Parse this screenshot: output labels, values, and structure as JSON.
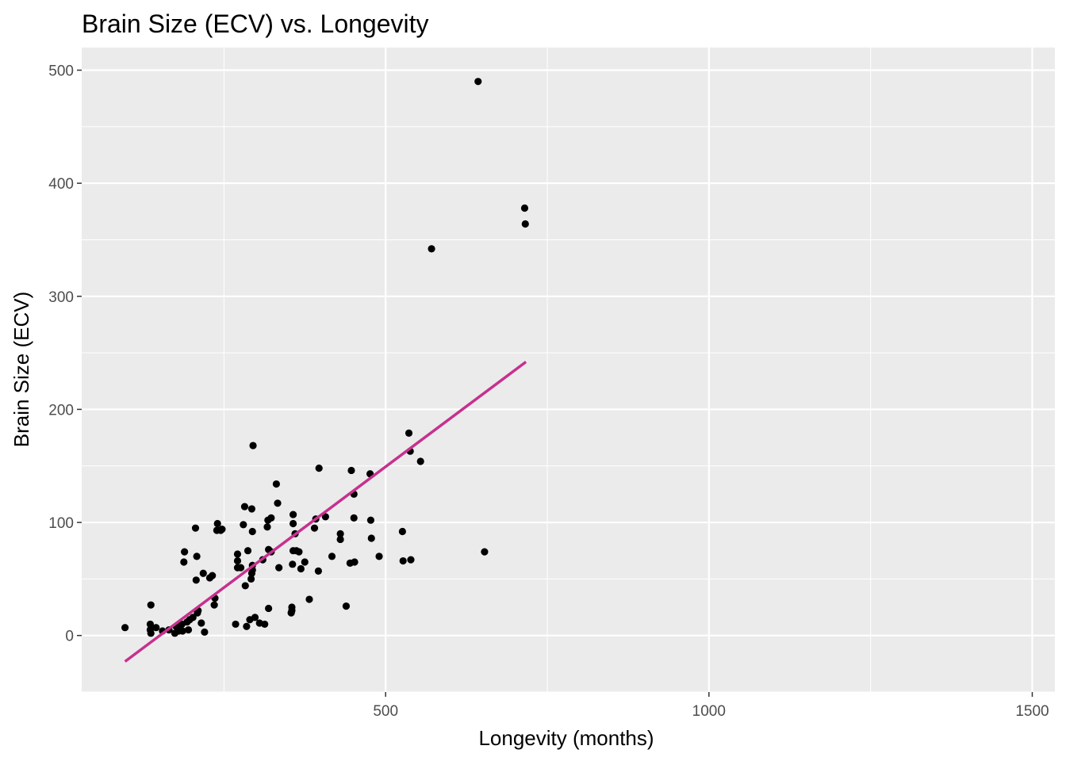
{
  "chart_data": {
    "type": "scatter",
    "title": "Brain Size (ECV) vs. Longevity",
    "xlabel": "Longevity (months)",
    "ylabel": "Brain Size (ECV)",
    "xlim": [
      30,
      1535
    ],
    "ylim": [
      -50,
      520
    ],
    "xticks": [
      500,
      1000,
      1500
    ],
    "yticks": [
      0,
      100,
      200,
      300,
      400,
      500
    ],
    "grid": true,
    "legend": "none",
    "colors": {
      "panel": "#EBEBEB",
      "grid": "#FFFFFF",
      "points": "#000000",
      "fit_line": "#C7308E",
      "tick_text": "#4D4D4D"
    },
    "points": [
      [
        97,
        7
      ],
      [
        137,
        27
      ],
      [
        136,
        10
      ],
      [
        136,
        5
      ],
      [
        137,
        2
      ],
      [
        145,
        7
      ],
      [
        155,
        4
      ],
      [
        165,
        5
      ],
      [
        174,
        2
      ],
      [
        176,
        8
      ],
      [
        180,
        4
      ],
      [
        182,
        6
      ],
      [
        185,
        10
      ],
      [
        186,
        4
      ],
      [
        188,
        65
      ],
      [
        189,
        74
      ],
      [
        193,
        12
      ],
      [
        195,
        5
      ],
      [
        197,
        14
      ],
      [
        202,
        16
      ],
      [
        206,
        95
      ],
      [
        207,
        49
      ],
      [
        208,
        70
      ],
      [
        209,
        20
      ],
      [
        210,
        22
      ],
      [
        215,
        11
      ],
      [
        218,
        55
      ],
      [
        220,
        3
      ],
      [
        228,
        51
      ],
      [
        232,
        53
      ],
      [
        235,
        27
      ],
      [
        236,
        33
      ],
      [
        239,
        93
      ],
      [
        240,
        99
      ],
      [
        245,
        93
      ],
      [
        247,
        94
      ],
      [
        268,
        10
      ],
      [
        271,
        72
      ],
      [
        271,
        66
      ],
      [
        271,
        60
      ],
      [
        276,
        60
      ],
      [
        280,
        98
      ],
      [
        282,
        114
      ],
      [
        283,
        44
      ],
      [
        285,
        8
      ],
      [
        287,
        75
      ],
      [
        290,
        14
      ],
      [
        292,
        50
      ],
      [
        293,
        112
      ],
      [
        293,
        55
      ],
      [
        294,
        58
      ],
      [
        294,
        62
      ],
      [
        294,
        92
      ],
      [
        295,
        168
      ],
      [
        298,
        16
      ],
      [
        305,
        11
      ],
      [
        310,
        67
      ],
      [
        313,
        10
      ],
      [
        317,
        96
      ],
      [
        318,
        102
      ],
      [
        319,
        24
      ],
      [
        319,
        76
      ],
      [
        323,
        104
      ],
      [
        323,
        74
      ],
      [
        331,
        134
      ],
      [
        333,
        117
      ],
      [
        335,
        60
      ],
      [
        354,
        20
      ],
      [
        355,
        25
      ],
      [
        355,
        22
      ],
      [
        356,
        63
      ],
      [
        357,
        75
      ],
      [
        357,
        107
      ],
      [
        357,
        99
      ],
      [
        360,
        90
      ],
      [
        362,
        75
      ],
      [
        366,
        74
      ],
      [
        369,
        59
      ],
      [
        375,
        65
      ],
      [
        382,
        32
      ],
      [
        390,
        95
      ],
      [
        392,
        103
      ],
      [
        396,
        57
      ],
      [
        397,
        148
      ],
      [
        407,
        105
      ],
      [
        417,
        70
      ],
      [
        430,
        85
      ],
      [
        430,
        90
      ],
      [
        439,
        26
      ],
      [
        445,
        64
      ],
      [
        447,
        146
      ],
      [
        451,
        125
      ],
      [
        451,
        104
      ],
      [
        452,
        65
      ],
      [
        476,
        143
      ],
      [
        477,
        102
      ],
      [
        478,
        86
      ],
      [
        490,
        70
      ],
      [
        526,
        92
      ],
      [
        527,
        66
      ],
      [
        536,
        179
      ],
      [
        538,
        163
      ],
      [
        539,
        67
      ],
      [
        554,
        154
      ],
      [
        571,
        342
      ],
      [
        643,
        490
      ],
      [
        653,
        74
      ],
      [
        715,
        378
      ],
      [
        716,
        364
      ]
    ],
    "fit_line": {
      "x": [
        97,
        717
      ],
      "y": [
        -23,
        242
      ]
    }
  }
}
